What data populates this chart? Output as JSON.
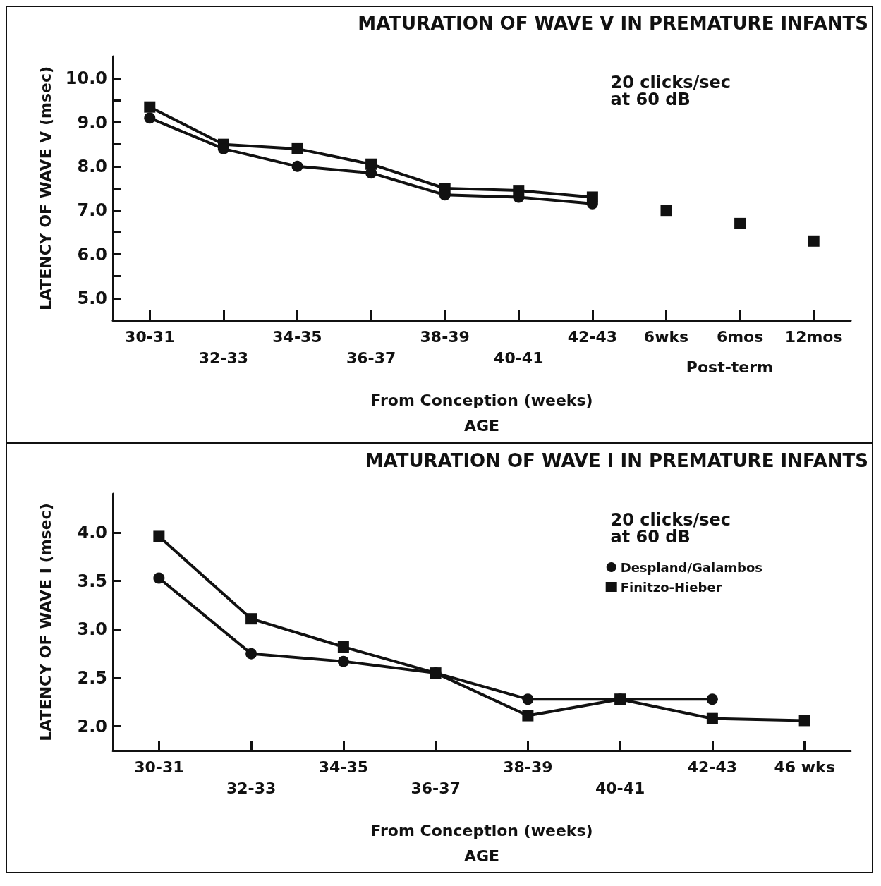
{
  "chart_data": [
    {
      "type": "line",
      "title": "MATURATION OF WAVE Ⅴ IN PREMATURE INFANTS",
      "ylabel": "LATENCY OF WAVE Ⅴ (msec)",
      "xlabel": "From Conception (weeks)\nAGE",
      "annotations": [
        "20 clicks/sec\nat 60 dB",
        "Post-term"
      ],
      "categories": [
        "30-31",
        "32-33",
        "34-35",
        "36-37",
        "38-39",
        "40-41",
        "42-43",
        "6wks",
        "6mos",
        "12mos"
      ],
      "series": [
        {
          "color": "#111111",
          "marker": "circle",
          "values": [
            9.1,
            8.4,
            8.0,
            7.85,
            7.35,
            7.3,
            7.15,
            null,
            null,
            null
          ]
        },
        {
          "color": "#111111",
          "marker": "square",
          "values": [
            9.35,
            8.5,
            8.4,
            8.05,
            7.5,
            7.45,
            7.3,
            null,
            null,
            null
          ]
        },
        {
          "type": "scatter",
          "color": "#111111",
          "marker": "square",
          "values": [
            null,
            null,
            null,
            null,
            null,
            null,
            null,
            7.0,
            6.7,
            6.3
          ]
        }
      ],
      "ylim": [
        4.5,
        10.5
      ],
      "yticks": [
        {
          "value": 5,
          "label": "5.0"
        },
        {
          "value": 5.5,
          "label": null
        },
        {
          "value": 6,
          "label": "6.0"
        },
        {
          "value": 6.5,
          "label": null
        },
        {
          "value": 7,
          "label": "7.0"
        },
        {
          "value": 7.5,
          "label": null
        },
        {
          "value": 8,
          "label": "8.0"
        },
        {
          "value": 8.5,
          "label": null
        },
        {
          "value": 9,
          "label": "9.0"
        },
        {
          "value": 9.5,
          "label": null
        },
        {
          "value": 10,
          "label": "10.0"
        }
      ],
      "grid": false,
      "legend": false,
      "line_style": "solid"
    },
    {
      "type": "line",
      "title": "MATURATION OF WAVE I IN PREMATURE INFANTS",
      "ylabel": "LATENCY OF WAVE I (msec)",
      "xlabel": "From Conception (weeks)\nAGE",
      "annotations": [
        "20 clicks/sec\nat 60 dB"
      ],
      "categories": [
        "30-31",
        "32-33",
        "34-35",
        "36-37",
        "38-39",
        "40-41",
        "42-43",
        "46 wks"
      ],
      "series": [
        {
          "name": "Despland/Galambos",
          "color": "#111111",
          "marker": "circle",
          "values": [
            3.53,
            2.75,
            2.67,
            2.55,
            2.28,
            2.28,
            2.28,
            null
          ]
        },
        {
          "name": "Finitzo-Hieber",
          "color": "#111111",
          "marker": "square",
          "values": [
            3.96,
            3.11,
            2.82,
            2.55,
            2.11,
            2.28,
            2.08,
            2.06
          ]
        }
      ],
      "ylim": [
        1.75,
        4.4
      ],
      "yticks": [
        {
          "value": 2,
          "label": "2.0"
        },
        {
          "value": 2.5,
          "label": "2.5"
        },
        {
          "value": 3,
          "label": "3.0"
        },
        {
          "value": 3.5,
          "label": "3.5"
        },
        {
          "value": 4,
          "label": "4.0"
        }
      ],
      "grid": false,
      "legend": "top right",
      "line_style": "solid"
    }
  ]
}
